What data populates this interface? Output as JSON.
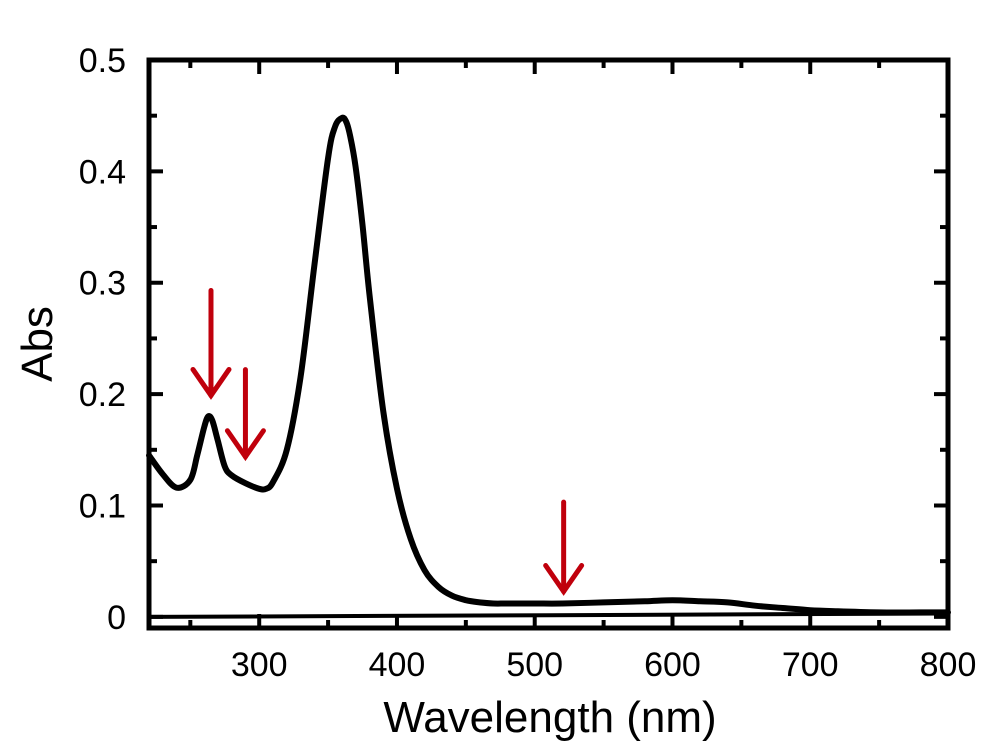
{
  "chart_data": {
    "type": "line",
    "title": "",
    "xlabel": "Wavelength (nm)",
    "ylabel": "Abs",
    "xlim": [
      220,
      800
    ],
    "ylim": [
      -0.01,
      0.5
    ],
    "x_ticks": [
      300,
      400,
      500,
      600,
      700,
      800
    ],
    "y_ticks": [
      0,
      0.1,
      0.2,
      0.3,
      0.4,
      0.5
    ],
    "x_tick_labels": [
      "300",
      "400",
      "500",
      "600",
      "700",
      "800"
    ],
    "y_tick_labels": [
      "0",
      "0.1",
      "0.2",
      "0.3",
      "0.4",
      "0.5"
    ],
    "x_minor_ticks": [
      250,
      350,
      450,
      550,
      650,
      750
    ],
    "y_minor_ticks": [
      0.05,
      0.15,
      0.25,
      0.35,
      0.45
    ],
    "grid": false,
    "series": [
      {
        "name": "spectrum",
        "color": "#000000",
        "x": [
          220,
          230,
          240,
          250,
          255,
          260,
          263,
          266,
          270,
          275,
          280,
          290,
          300,
          305,
          310,
          320,
          330,
          340,
          350,
          355,
          360,
          363,
          366,
          370,
          375,
          380,
          390,
          400,
          410,
          420,
          430,
          440,
          450,
          460,
          470,
          480,
          500,
          520,
          550,
          580,
          600,
          620,
          640,
          660,
          680,
          700,
          720,
          750,
          780,
          800
        ],
        "y": [
          0.145,
          0.128,
          0.116,
          0.123,
          0.145,
          0.17,
          0.18,
          0.176,
          0.158,
          0.135,
          0.127,
          0.12,
          0.115,
          0.115,
          0.121,
          0.15,
          0.215,
          0.315,
          0.412,
          0.44,
          0.448,
          0.445,
          0.432,
          0.404,
          0.352,
          0.29,
          0.185,
          0.115,
          0.07,
          0.042,
          0.027,
          0.019,
          0.015,
          0.013,
          0.012,
          0.012,
          0.012,
          0.012,
          0.013,
          0.014,
          0.015,
          0.014,
          0.013,
          0.01,
          0.008,
          0.006,
          0.005,
          0.004,
          0.004,
          0.004
        ]
      },
      {
        "name": "baseline",
        "color": "#000000",
        "x": [
          220,
          800
        ],
        "y": [
          0.0,
          0.003
        ]
      }
    ],
    "annotations": [
      {
        "type": "arrow",
        "color": "#c0000c",
        "x": 265,
        "y_start": 0.293,
        "y_end": 0.188
      },
      {
        "type": "arrow",
        "color": "#c0000c",
        "x": 290,
        "y_start": 0.222,
        "y_end": 0.133
      },
      {
        "type": "arrow",
        "color": "#c0000c",
        "x": 521,
        "y_start": 0.012,
        "y_end": 0.012,
        "y_top": 0.103
      }
    ]
  }
}
